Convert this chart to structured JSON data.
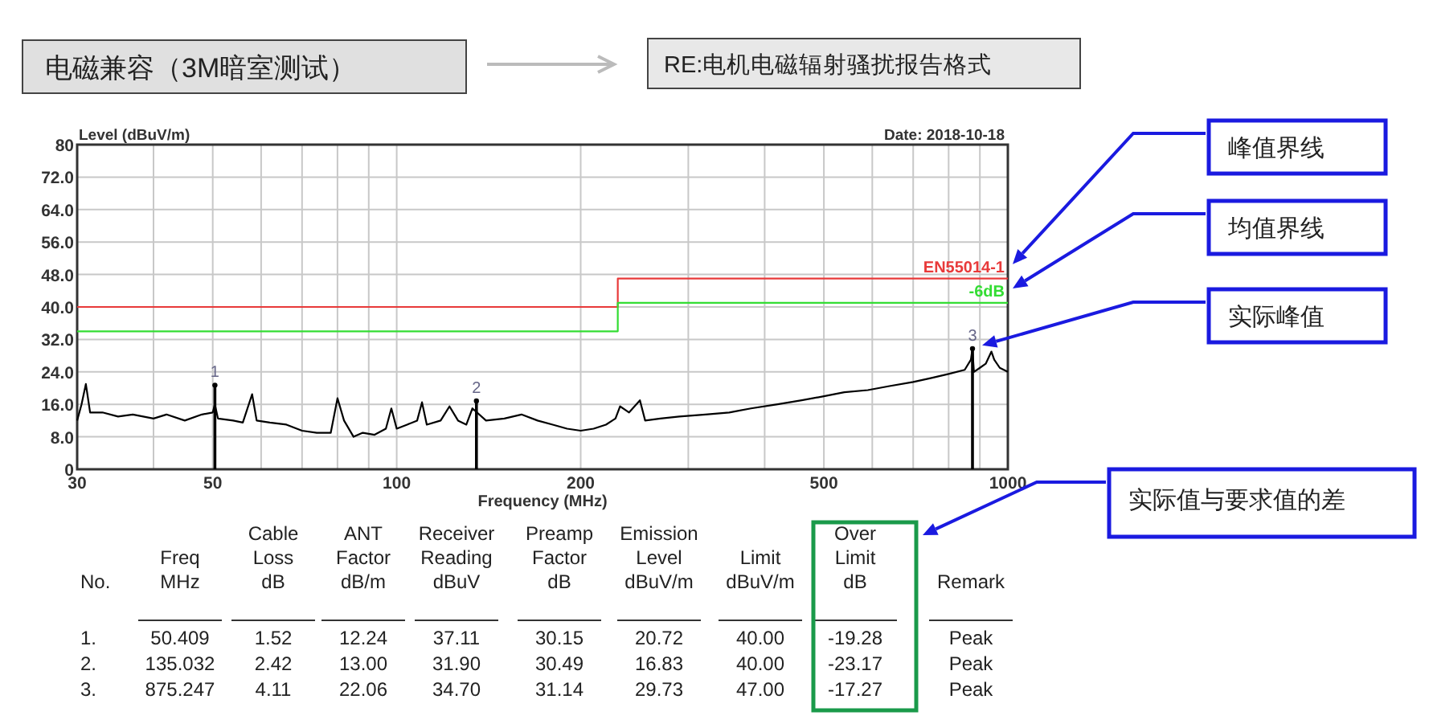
{
  "chart_data": {
    "type": "line",
    "title": "电磁兼容（3M暗室测试）",
    "subtitle": "RE:电机电磁辐射骚扰报告格式",
    "ylabel": "Level (dBuV/m)",
    "xlabel": "Frequency (MHz)",
    "log": "x",
    "grid": true,
    "line_style": "solid",
    "xlim": [
      30,
      1000
    ],
    "ylim": [
      0,
      80
    ],
    "xticks": [
      30,
      {
        "value": 40,
        "label": null
      },
      50,
      {
        "value": 60,
        "label": null
      },
      {
        "value": 70,
        "label": null
      },
      {
        "value": 80,
        "label": null
      },
      {
        "value": 90,
        "label": null
      },
      100,
      200,
      {
        "value": 300,
        "label": null
      },
      {
        "value": 400,
        "label": null
      },
      500,
      {
        "value": 600,
        "label": null
      },
      {
        "value": 700,
        "label": null
      },
      {
        "value": 800,
        "label": null
      },
      {
        "value": 900,
        "label": null
      },
      1000
    ],
    "yticks": [
      0,
      {
        "value": 8,
        "label": "8.0"
      },
      {
        "value": 16,
        "label": "16.0"
      },
      {
        "value": 24,
        "label": "24.0"
      },
      {
        "value": 32,
        "label": "32.0"
      },
      {
        "value": 40,
        "label": "40.0"
      },
      {
        "value": 48,
        "label": "48.0"
      },
      {
        "value": 56,
        "label": "56.0"
      },
      {
        "value": 64,
        "label": "64.0"
      },
      {
        "value": 72,
        "label": "72.0"
      },
      80
    ],
    "series": [
      {
        "color": "#000000",
        "x": [
          30,
          30.5,
          31,
          31.5,
          33,
          35,
          37,
          40,
          42,
          45,
          48,
          50,
          50.4,
          51,
          54,
          56,
          58,
          59,
          62,
          66,
          70,
          74,
          78,
          80,
          82,
          85,
          88,
          92,
          96,
          98,
          100,
          104,
          108,
          110,
          112,
          118,
          122,
          126,
          130,
          133,
          140,
          150,
          160,
          170,
          180,
          190,
          200,
          210,
          220,
          228,
          232,
          240,
          250,
          255,
          270,
          290,
          320,
          350,
          380,
          420,
          460,
          500,
          540,
          590,
          640,
          700,
          750,
          800,
          850,
          870,
          875,
          880,
          900,
          920,
          940,
          950,
          970,
          1000
        ],
        "values": [
          12,
          16,
          21,
          14,
          14,
          13,
          13.5,
          12.5,
          13.5,
          12,
          13.5,
          14,
          16,
          12.5,
          12,
          11.5,
          18.5,
          12,
          11.5,
          11,
          9.5,
          9,
          9,
          17.5,
          12,
          8,
          9,
          8.5,
          10,
          15,
          10,
          11,
          12,
          16.5,
          11,
          12,
          15.5,
          12,
          11,
          15,
          12,
          12.5,
          13.5,
          12,
          11,
          10,
          9.5,
          10,
          11,
          12.5,
          15.5,
          14,
          17,
          12,
          12.5,
          13,
          13.5,
          14,
          15,
          16,
          17,
          18,
          19,
          19.5,
          20.5,
          21.5,
          22.5,
          23.5,
          24.5,
          27,
          29.7,
          24,
          25,
          26,
          29,
          27,
          25,
          24
        ]
      },
      {
        "name": "EN55014-1",
        "color": "#e83a3a",
        "type": "line",
        "x": [
          30,
          230,
          230,
          1000
        ],
        "values": [
          40,
          40,
          47,
          47
        ]
      },
      {
        "name": "-6dB",
        "color": "#33dd33",
        "type": "line",
        "x": [
          30,
          230,
          230,
          1000
        ],
        "values": [
          34,
          34,
          41,
          41
        ]
      },
      {
        "color": "#000000",
        "type": "lollipop",
        "x": [
          50.409,
          135.032,
          875.247
        ],
        "values": [
          20.72,
          16.83,
          29.73
        ]
      }
    ],
    "annotations": [
      {
        "text": "1",
        "x": 50.409,
        "y": 20.72
      },
      {
        "text": "2",
        "x": 135.032,
        "y": 16.83
      },
      {
        "text": "3",
        "x": 875.247,
        "y": 29.73
      },
      "峰值界线",
      "均值界线",
      "实际峰值",
      "Date: 2018-10-18",
      "实际值与要求值的差",
      "No.",
      "Freq\nMHz",
      "Cable\nLoss\ndB",
      "ANT\nFactor\ndB/m",
      "Receiver\nReading\ndBuV",
      "Preamp\nFactor\ndB",
      "Emission\nLevel\ndBuV/m",
      "Limit\ndBuV/m",
      "Over\nLimit\ndB",
      "Remark",
      "1.",
      "50.409",
      "1.52",
      "12.24",
      "37.11",
      "30.15",
      "20.72",
      "40.00",
      "-19.28",
      "Peak",
      "2.",
      "135.032",
      "2.42",
      "13.00",
      "31.90",
      "30.49",
      "16.83",
      "40.00",
      "-23.17",
      "Peak",
      "3.",
      "875.247",
      "4.11",
      "22.06",
      "34.70",
      "31.14",
      "29.73",
      "47.00",
      "-17.27",
      "Peak"
    ]
  }
}
